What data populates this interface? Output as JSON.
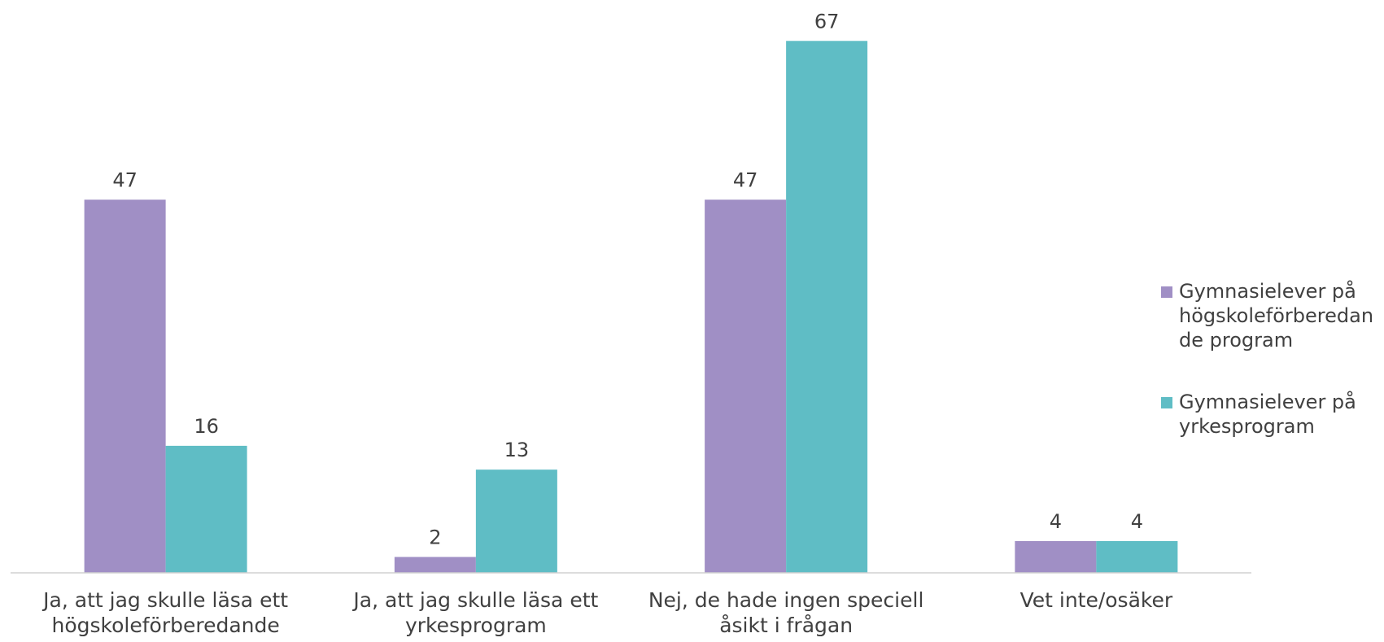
{
  "chart_data": {
    "type": "bar",
    "categories": [
      "Ja, att jag skulle läsa ett högskoleförberedande program",
      "Ja, att jag skulle läsa ett yrkesprogram",
      "Nej, de hade ingen speciell åsikt i frågan",
      "Vet inte/osäker"
    ],
    "series": [
      {
        "name": "Gymnasielever på högskoleförberedande program",
        "color": "#a08fc5",
        "values": [
          47,
          2,
          47,
          4
        ]
      },
      {
        "name": "Gymnasielever på yrkesprogram",
        "color": "#5fbdc5",
        "values": [
          16,
          13,
          67,
          4
        ]
      }
    ],
    "ylim": [
      0,
      70
    ],
    "legend": "right"
  }
}
